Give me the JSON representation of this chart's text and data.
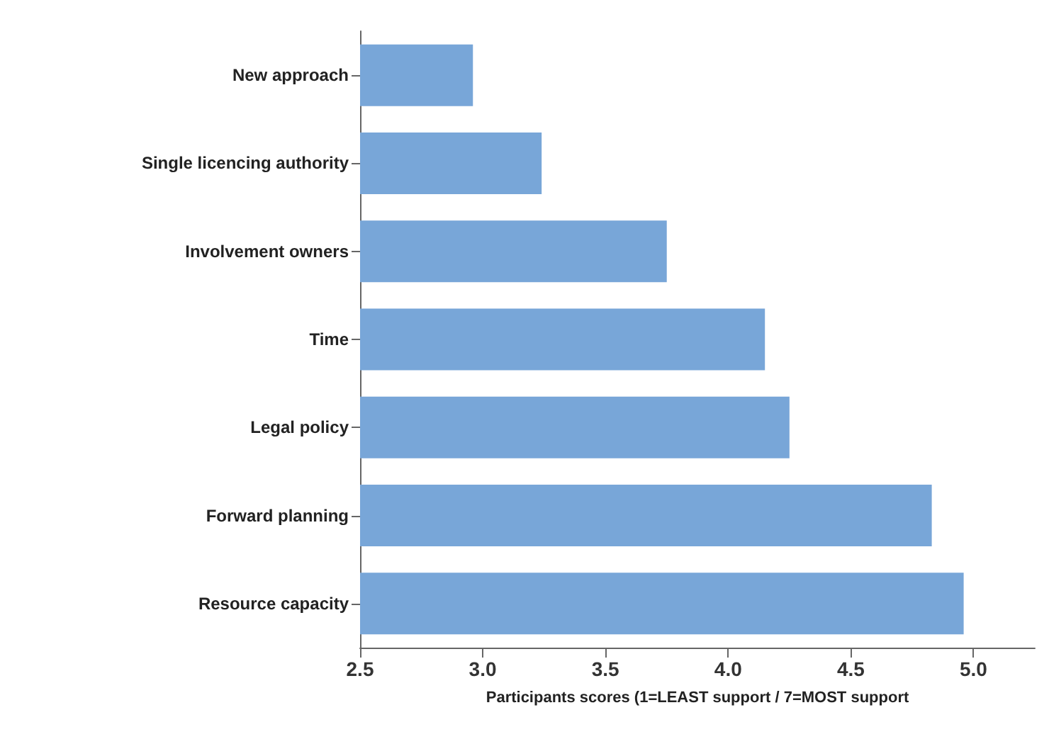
{
  "chart_data": {
    "type": "bar",
    "orientation": "horizontal",
    "xlabel": "Participants scores (1=LEAST support / 7=MOST support",
    "categories": [
      "New approach",
      "Single licencing authority",
      "Involvement owners",
      "Time",
      "Legal policy",
      "Forward planning",
      "Resource capacity"
    ],
    "values": [
      2.96,
      3.24,
      3.75,
      4.15,
      4.25,
      4.83,
      4.96
    ],
    "color": "#78a6d8",
    "xlim": [
      2.5,
      5.25
    ],
    "xticks": [
      {
        "value": 2.5,
        "label": "2.5"
      },
      {
        "value": 3.0,
        "label": "3.0"
      },
      {
        "value": 3.5,
        "label": "3.5"
      },
      {
        "value": 4.0,
        "label": "4.0"
      },
      {
        "value": 4.5,
        "label": "4.5"
      },
      {
        "value": 5.0,
        "label": "5.0"
      }
    ]
  }
}
